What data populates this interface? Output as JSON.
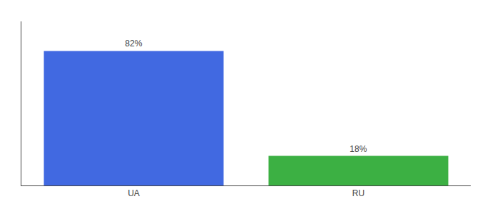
{
  "chart_data": {
    "type": "bar",
    "categories": [
      "UA",
      "RU"
    ],
    "values": [
      82,
      18
    ],
    "value_labels": [
      "82%",
      "18%"
    ],
    "colors": [
      "#4169e1",
      "#3cb043"
    ],
    "ylim": [
      0,
      100
    ],
    "data_labels": true,
    "tick_labels": "x",
    "grid": false
  }
}
